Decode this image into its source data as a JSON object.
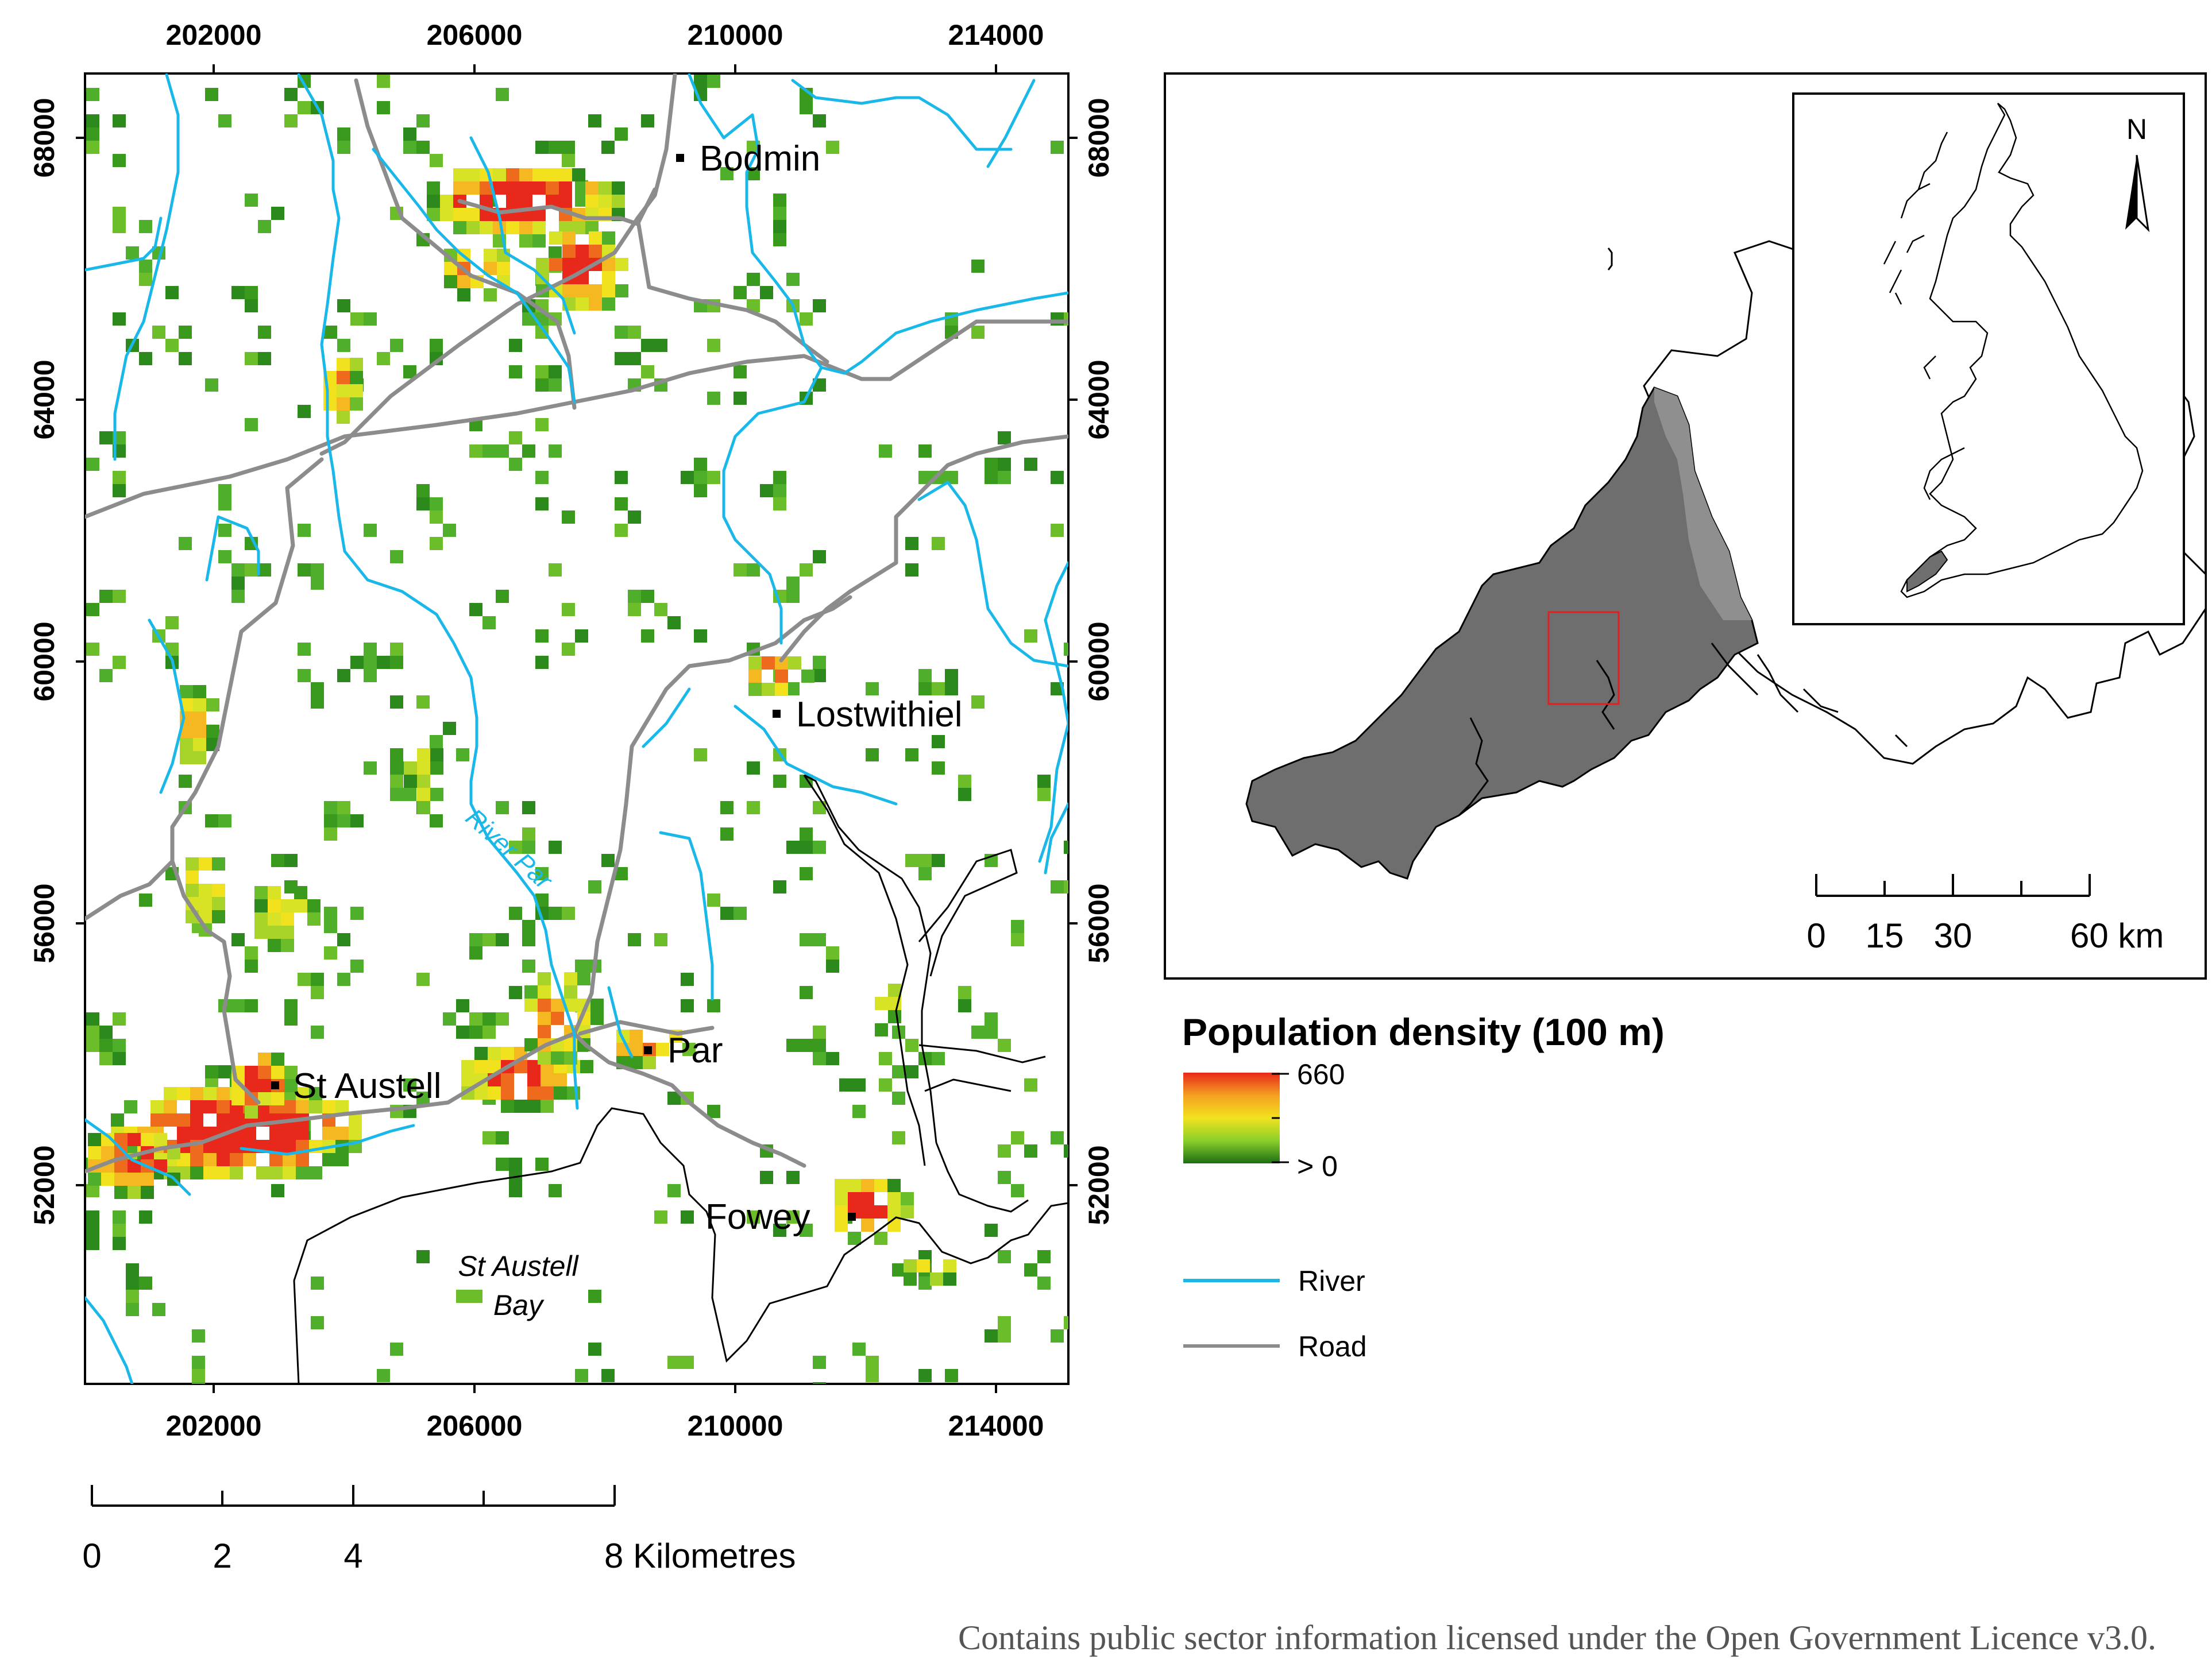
{
  "colors": {
    "river": "#1ab8e8",
    "road": "#8c8c8c",
    "coast": "#000000",
    "cornwall_fill": "#6e6e6e",
    "devon_fill": "#8f8f8f",
    "extent_box": "#e02020",
    "density_high": "#e8281a",
    "density_mid": "#f2e21e",
    "density_low": "#2c8a1c"
  },
  "main_map": {
    "x_ticks": [
      "202000",
      "206000",
      "210000",
      "214000"
    ],
    "y_ticks": [
      "68000",
      "64000",
      "60000",
      "56000",
      "52000"
    ],
    "towns": [
      {
        "id": "bodmin",
        "label": "Bodmin"
      },
      {
        "id": "lostwithiel",
        "label": "Lostwithiel"
      },
      {
        "id": "st-austell",
        "label": "St Austell"
      },
      {
        "id": "par",
        "label": "Par"
      },
      {
        "id": "fowey",
        "label": "Fowey"
      }
    ],
    "river_label": "River Par",
    "bay_label": [
      "St Austell",
      "Bay"
    ]
  },
  "scale_bar": {
    "ticks": [
      "0",
      "2",
      "4"
    ],
    "end_label": "8 Kilometres"
  },
  "inset_map": {
    "north_label": "N",
    "scale_ticks": [
      "0",
      "15",
      "30"
    ],
    "scale_end": "60 km"
  },
  "legend": {
    "title": "Population density (100 m)",
    "max_label": "660",
    "min_label": "> 0",
    "river_label": "River",
    "road_label": "Road"
  },
  "credit": "Contains public sector information licensed under the Open Government Licence v3.0."
}
